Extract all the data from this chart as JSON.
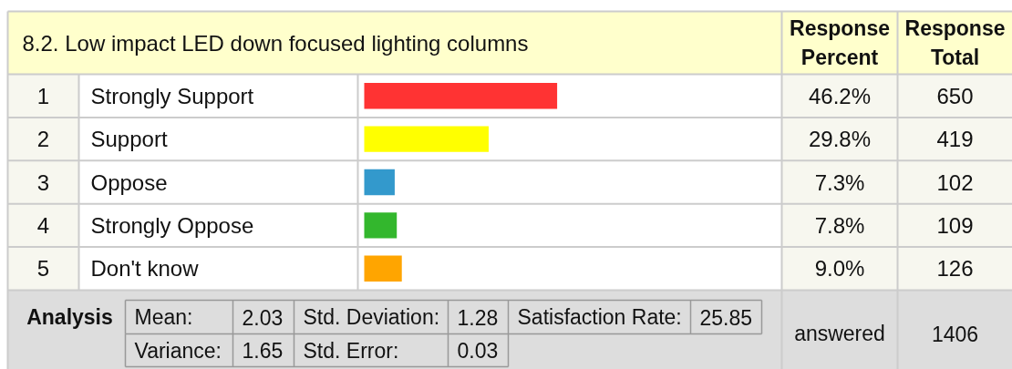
{
  "chart_data": {
    "type": "bar",
    "orientation": "horizontal",
    "title": "8.2. Low impact LED down focused lighting columns",
    "categories": [
      "Strongly Support",
      "Support",
      "Oppose",
      "Strongly Oppose",
      "Don't know"
    ],
    "values": [
      46.2,
      29.8,
      7.3,
      7.8,
      9.0
    ],
    "colors": [
      "#ff3333",
      "#ffff00",
      "#3399cc",
      "#33b72d",
      "#ffa500"
    ],
    "value_labels": [
      "46.2%",
      "29.8%",
      "7.3%",
      "7.8%",
      "9.0%"
    ],
    "xlim": [
      0,
      100
    ],
    "tick_labels": "y",
    "annotations": [
      "1",
      "2",
      "3",
      "4",
      "5",
      "650",
      "419",
      "102",
      "109",
      "126",
      "Response Percent",
      "Response Total",
      "Analysis",
      "Mean:",
      "2.03",
      "Std. Deviation:",
      "1.28",
      "Satisfaction Rate:",
      "25.85",
      "Variance:",
      "1.65",
      "Std. Error:",
      "0.03",
      "answered",
      "1406"
    ]
  }
}
